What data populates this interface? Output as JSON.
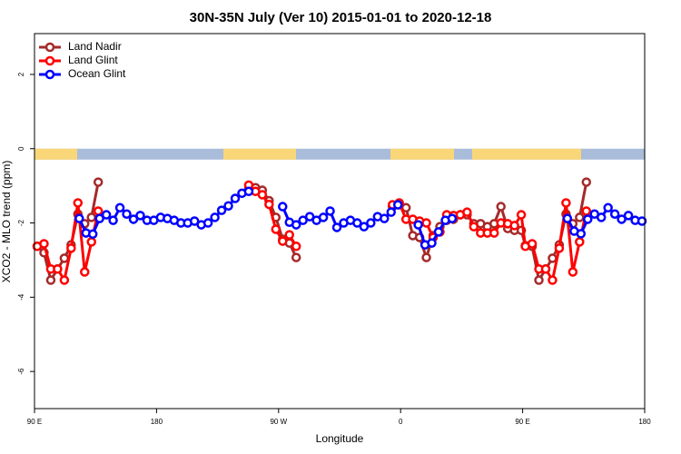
{
  "chart_data": {
    "type": "line",
    "title": "30N-35N July (Ver 10)   2015-01-01 to 2020-12-18",
    "x_label": "Longitude",
    "y_label": "XCO2 - MLO trend (ppm)",
    "xlim": [
      90,
      540
    ],
    "xticks": [
      {
        "value": 90,
        "label": "90 E"
      },
      {
        "value": 180,
        "label": "180"
      },
      {
        "value": 270,
        "label": "90 W"
      },
      {
        "value": 360,
        "label": "0"
      },
      {
        "value": 450,
        "label": "90 E"
      },
      {
        "value": 540,
        "label": "180"
      }
    ],
    "ylim": [
      -7,
      3.1
    ],
    "yticks": [
      2,
      0,
      -2,
      -4,
      -6
    ],
    "legend": "top-left",
    "series": [
      {
        "name": "Land Nadir",
        "color": "#a52a2a",
        "x": [
          92,
          97,
          102,
          107,
          112,
          117,
          122,
          127,
          132,
          137,
          null,
          248,
          253,
          258,
          263,
          268,
          273,
          278,
          283,
          null,
          354,
          359,
          364,
          369,
          374,
          379,
          384,
          389,
          394,
          399,
          404,
          409,
          414,
          419,
          424,
          429,
          434,
          439,
          444,
          449,
          452,
          457,
          462,
          467,
          472,
          477,
          482,
          487,
          492,
          497
        ],
        "values": [
          -2.63,
          -2.8,
          -3.54,
          -3.24,
          -2.95,
          -2.59,
          -1.76,
          -2.02,
          -1.85,
          -0.9,
          null,
          -1.07,
          -1.05,
          -1.12,
          -1.4,
          -1.85,
          -2.44,
          -2.54,
          -2.93,
          null,
          -1.56,
          -1.51,
          -1.59,
          -2.34,
          -2.39,
          -2.93,
          -2.34,
          -2.1,
          -1.93,
          -1.9,
          -1.78,
          -1.78,
          -2.02,
          -2.02,
          -2.1,
          -2.02,
          -1.56,
          -2.15,
          -2.2,
          -2.2,
          -2.61,
          -2.63,
          -3.54,
          -3.24,
          -2.95,
          -2.59,
          -1.76,
          -2.02,
          -1.85,
          -0.9
        ]
      },
      {
        "name": "Land Glint",
        "color": "#ff0000",
        "x": [
          92,
          97,
          102,
          107,
          112,
          117,
          122,
          127,
          132,
          137,
          null,
          248,
          253,
          258,
          263,
          268,
          273,
          278,
          283,
          null,
          354,
          359,
          364,
          369,
          374,
          379,
          384,
          389,
          394,
          399,
          404,
          409,
          414,
          419,
          424,
          429,
          434,
          439,
          444,
          449,
          452,
          457,
          462,
          467,
          472,
          477,
          482,
          487,
          492,
          497
        ],
        "values": [
          -2.63,
          -2.56,
          -3.24,
          -3.24,
          -3.54,
          -2.68,
          -1.46,
          -3.32,
          -2.51,
          -1.68,
          null,
          -0.98,
          -1.15,
          -1.24,
          -1.5,
          -2.17,
          -2.49,
          -2.32,
          -2.63,
          null,
          -1.51,
          -1.46,
          -1.9,
          -1.9,
          -1.95,
          -2.0,
          -2.39,
          -2.24,
          -1.78,
          -1.8,
          -1.78,
          -1.71,
          -2.1,
          -2.27,
          -2.27,
          -2.27,
          -2.0,
          -2.02,
          -2.07,
          -1.78,
          -2.63,
          -2.56,
          -3.24,
          -3.24,
          -3.54,
          -2.68,
          -1.46,
          -3.32,
          -2.51,
          -1.68
        ]
      },
      {
        "name": "Ocean Glint",
        "color": "#0000ff",
        "x": [
          123,
          128,
          133,
          138,
          143,
          148,
          153,
          158,
          163,
          168,
          173,
          178,
          183,
          188,
          193,
          198,
          203,
          208,
          213,
          218,
          223,
          228,
          233,
          238,
          243,
          248,
          null,
          273,
          278,
          283,
          288,
          293,
          298,
          303,
          308,
          313,
          318,
          323,
          328,
          333,
          338,
          343,
          348,
          353,
          358,
          null,
          373,
          378,
          383,
          388,
          393,
          398,
          null,
          483,
          488,
          493,
          498,
          503,
          508,
          513,
          518,
          523,
          528,
          533,
          538
        ],
        "values": [
          -1.88,
          -2.27,
          -2.3,
          -1.88,
          -1.78,
          -1.93,
          -1.59,
          -1.76,
          -1.9,
          -1.8,
          -1.93,
          -1.93,
          -1.85,
          -1.88,
          -1.93,
          -2.0,
          -2.0,
          -1.95,
          -2.05,
          -2.0,
          -1.85,
          -1.66,
          -1.54,
          -1.34,
          -1.2,
          -1.15,
          null,
          -1.56,
          -1.98,
          -2.05,
          -1.93,
          -1.83,
          -1.93,
          -1.85,
          -1.68,
          -2.12,
          -2.0,
          -1.93,
          -2.0,
          -2.1,
          -2.0,
          -1.83,
          -1.88,
          -1.71,
          -1.51,
          null,
          -2.05,
          -2.59,
          -2.54,
          -2.24,
          -1.93,
          -1.88,
          null,
          -1.88,
          -2.22,
          -2.29,
          -1.9,
          -1.76,
          -1.85,
          -1.59,
          -1.76,
          -1.9,
          -1.8,
          -1.93,
          -1.95
        ]
      }
    ]
  }
}
